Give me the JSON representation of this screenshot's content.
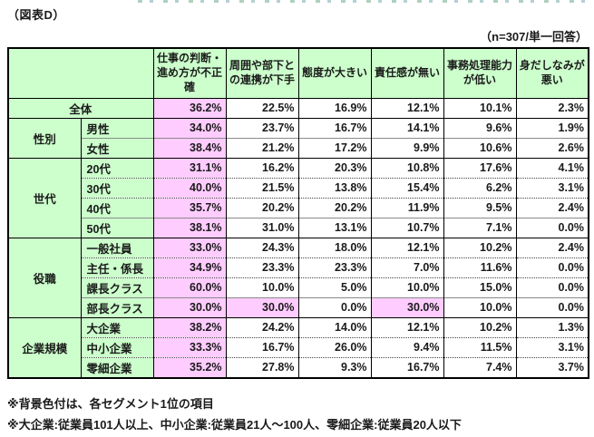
{
  "page": {
    "figure_label": "（図表D）",
    "sample_note": "（n=307/単一回答）",
    "footnotes": [
      "※背景色付は、各セグメント1位の項目",
      "※大企業:従業員101人以上、中小企業:従業員21人〜100人、零細企業:従業員20人以下"
    ]
  },
  "colors": {
    "header_green": "#ccffcc",
    "highlight_pink": "#ffccff",
    "border_black": "#000000"
  },
  "chart_data": {
    "type": "table",
    "title": "（図表D）",
    "sample_note": "（n=307/単一回答）",
    "unit": "%",
    "highlight_meaning": "各セグメント1位の項目（ピンク背景）",
    "columns": [
      "仕事の判断・進め方が不正確",
      "周囲や部下との連携が下手",
      "態度が大きい",
      "責任感が無い",
      "事務処理能力が低い",
      "身だしなみが悪い"
    ],
    "rows": [
      {
        "label": "全体",
        "label_colspan": 2,
        "sep": "group",
        "values": [
          36.2,
          22.5,
          16.9,
          12.1,
          10.1,
          2.3
        ],
        "highlight": [
          0
        ]
      },
      {
        "group": "性別",
        "group_rowspan": 2,
        "label": "男性",
        "sep": "group",
        "values": [
          34.0,
          23.7,
          16.7,
          14.1,
          9.6,
          1.9
        ],
        "highlight": [
          0
        ]
      },
      {
        "label": "女性",
        "sep": "solid",
        "values": [
          38.4,
          21.2,
          17.2,
          9.9,
          10.6,
          2.6
        ],
        "highlight": [
          0
        ]
      },
      {
        "group": "世代",
        "group_rowspan": 4,
        "label": "20代",
        "sep": "group",
        "values": [
          31.1,
          16.2,
          20.3,
          10.8,
          17.6,
          4.1
        ],
        "highlight": [
          0
        ]
      },
      {
        "label": "30代",
        "sep": "dotted",
        "values": [
          40.0,
          21.5,
          13.8,
          15.4,
          6.2,
          3.1
        ],
        "highlight": [
          0
        ]
      },
      {
        "label": "40代",
        "sep": "dotted",
        "values": [
          35.7,
          20.2,
          20.2,
          11.9,
          9.5,
          2.4
        ],
        "highlight": [
          0
        ]
      },
      {
        "label": "50代",
        "sep": "solid",
        "values": [
          38.1,
          31.0,
          13.1,
          10.7,
          7.1,
          0.0
        ],
        "highlight": [
          0
        ]
      },
      {
        "group": "役職",
        "group_rowspan": 4,
        "label": "一般社員",
        "sep": "group",
        "values": [
          33.0,
          24.3,
          18.0,
          12.1,
          10.2,
          2.4
        ],
        "highlight": [
          0
        ]
      },
      {
        "label": "主任・係長",
        "sep": "dotted",
        "values": [
          34.9,
          23.3,
          23.3,
          7.0,
          11.6,
          0.0
        ],
        "highlight": [
          0
        ]
      },
      {
        "label": "課長クラス",
        "sep": "dotted",
        "values": [
          60.0,
          10.0,
          5.0,
          10.0,
          15.0,
          0.0
        ],
        "highlight": [
          0
        ]
      },
      {
        "label": "部長クラス",
        "sep": "solid",
        "values": [
          30.0,
          30.0,
          0.0,
          30.0,
          10.0,
          0.0
        ],
        "highlight": [
          0,
          1,
          3
        ]
      },
      {
        "group": "企業規模",
        "group_rowspan": 3,
        "label": "大企業",
        "sep": "group",
        "values": [
          38.2,
          24.2,
          14.0,
          12.1,
          10.2,
          1.3
        ],
        "highlight": [
          0
        ]
      },
      {
        "label": "中小企業",
        "sep": "dotted",
        "values": [
          33.3,
          16.7,
          26.0,
          9.4,
          11.5,
          3.1
        ],
        "highlight": [
          0
        ]
      },
      {
        "label": "零細企業",
        "sep": "dotted",
        "values": [
          35.2,
          27.8,
          9.3,
          16.7,
          7.4,
          3.7
        ],
        "highlight": [
          0
        ]
      }
    ]
  }
}
